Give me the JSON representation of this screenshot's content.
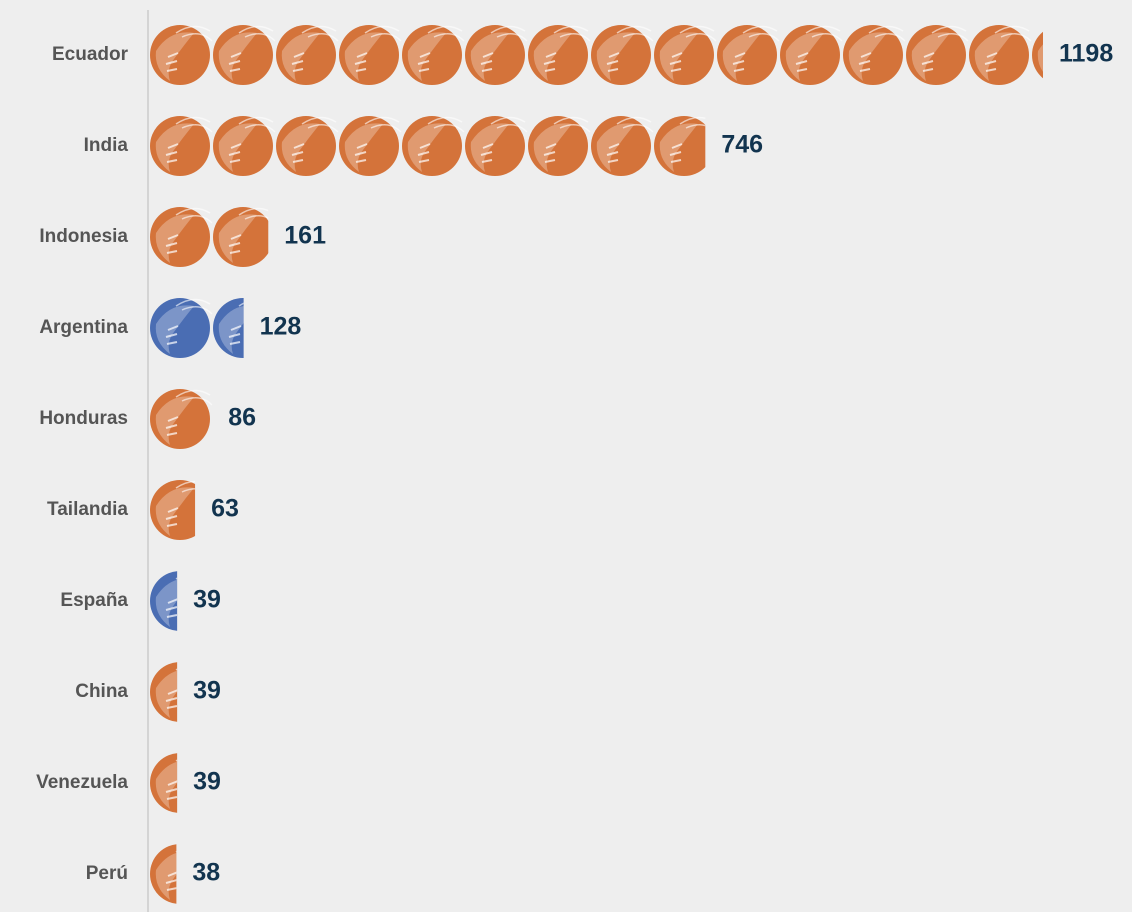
{
  "chart_data": {
    "type": "pictogram_bar",
    "categories": [
      "Ecuador",
      "India",
      "Indonesia",
      "Argentina",
      "Honduras",
      "Tailandia",
      "España",
      "China",
      "Venezuela",
      "Perú"
    ],
    "values": [
      1198,
      746,
      161,
      128,
      86,
      63,
      39,
      39,
      39,
      38
    ],
    "colors": [
      "#d4733a",
      "#d4733a",
      "#d4733a",
      "#4a6db3",
      "#d4733a",
      "#d4733a",
      "#4a6db3",
      "#d4733a",
      "#d4733a",
      "#d4733a"
    ],
    "xlim": [
      0,
      1200
    ]
  }
}
